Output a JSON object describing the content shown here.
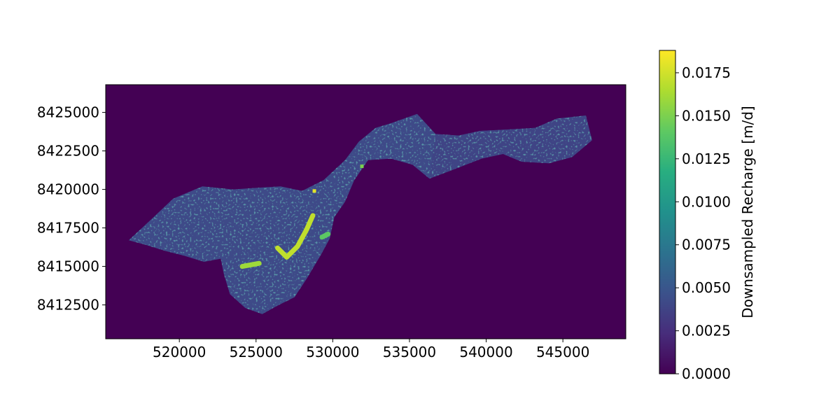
{
  "chart_data": {
    "type": "heatmap",
    "title": "",
    "xlabel": "",
    "ylabel": "",
    "xlim": [
      515200,
      549100
    ],
    "ylim": [
      8410300,
      8426800
    ],
    "x_ticks": [
      520000,
      525000,
      530000,
      535000,
      540000,
      545000
    ],
    "x_tick_labels": [
      "520000",
      "525000",
      "530000",
      "535000",
      "540000",
      "545000"
    ],
    "y_ticks": [
      8412500,
      8415000,
      8417500,
      8420000,
      8422500,
      8425000
    ],
    "y_tick_labels": [
      "8412500",
      "8415000",
      "8417500",
      "8420000",
      "8422500",
      "8425000"
    ],
    "colormap": "viridis",
    "background_value": 0.0,
    "colorbar": {
      "label": "Downsampled Recharge [m/d]",
      "range": [
        0.0,
        0.0188
      ],
      "ticks": [
        0.0,
        0.0025,
        0.005,
        0.0075,
        0.01,
        0.0125,
        0.015,
        0.0175
      ],
      "tick_labels": [
        "0.0000",
        "0.0025",
        "0.0050",
        "0.0075",
        "0.0100",
        "0.0125",
        "0.0150",
        "0.0175"
      ]
    },
    "region": {
      "outline": [
        [
          516700,
          8416700
        ],
        [
          518000,
          8417900
        ],
        [
          519600,
          8419400
        ],
        [
          521500,
          8420200
        ],
        [
          523500,
          8420000
        ],
        [
          525000,
          8420100
        ],
        [
          526600,
          8420200
        ],
        [
          528000,
          8419900
        ],
        [
          529400,
          8420600
        ],
        [
          530800,
          8421900
        ],
        [
          531700,
          8423100
        ],
        [
          532800,
          8424000
        ],
        [
          533800,
          8424300
        ],
        [
          535500,
          8424900
        ],
        [
          536700,
          8423600
        ],
        [
          538200,
          8423500
        ],
        [
          539600,
          8423800
        ],
        [
          541600,
          8423900
        ],
        [
          543200,
          8424000
        ],
        [
          544600,
          8424600
        ],
        [
          546500,
          8424800
        ],
        [
          546900,
          8423200
        ],
        [
          545600,
          8422100
        ],
        [
          544100,
          8421700
        ],
        [
          542300,
          8421800
        ],
        [
          541100,
          8422300
        ],
        [
          539700,
          8422000
        ],
        [
          537900,
          8421300
        ],
        [
          536300,
          8420700
        ],
        [
          535200,
          8421600
        ],
        [
          533800,
          8422000
        ],
        [
          532300,
          8421900
        ],
        [
          531400,
          8420600
        ],
        [
          530800,
          8419200
        ],
        [
          530100,
          8418200
        ],
        [
          529800,
          8416800
        ],
        [
          529200,
          8415700
        ],
        [
          528300,
          8414200
        ],
        [
          527500,
          8413000
        ],
        [
          526300,
          8412400
        ],
        [
          525400,
          8411900
        ],
        [
          524300,
          8412300
        ],
        [
          523300,
          8413200
        ],
        [
          522900,
          8414500
        ],
        [
          522700,
          8415500
        ],
        [
          521600,
          8415300
        ],
        [
          520300,
          8415700
        ],
        [
          519100,
          8416000
        ],
        [
          517800,
          8416400
        ]
      ],
      "base_level": 0.0042,
      "east_arm_level": 0.0036,
      "hot_streaks": [
        {
          "path": [
            [
              524100,
              8415000
            ],
            [
              525200,
              8415200
            ]
          ],
          "level": 0.016
        },
        {
          "path": [
            [
              526400,
              8416200
            ],
            [
              527000,
              8415600
            ],
            [
              527700,
              8416300
            ],
            [
              528300,
              8417400
            ],
            [
              528700,
              8418300
            ]
          ],
          "level": 0.017
        },
        {
          "path": [
            [
              529300,
              8416900
            ],
            [
              529700,
              8417100
            ]
          ],
          "level": 0.014
        },
        {
          "path": [
            [
              528800,
              8419900
            ]
          ],
          "level": 0.018
        },
        {
          "path": [
            [
              531900,
              8421500
            ]
          ],
          "level": 0.015
        }
      ]
    }
  }
}
